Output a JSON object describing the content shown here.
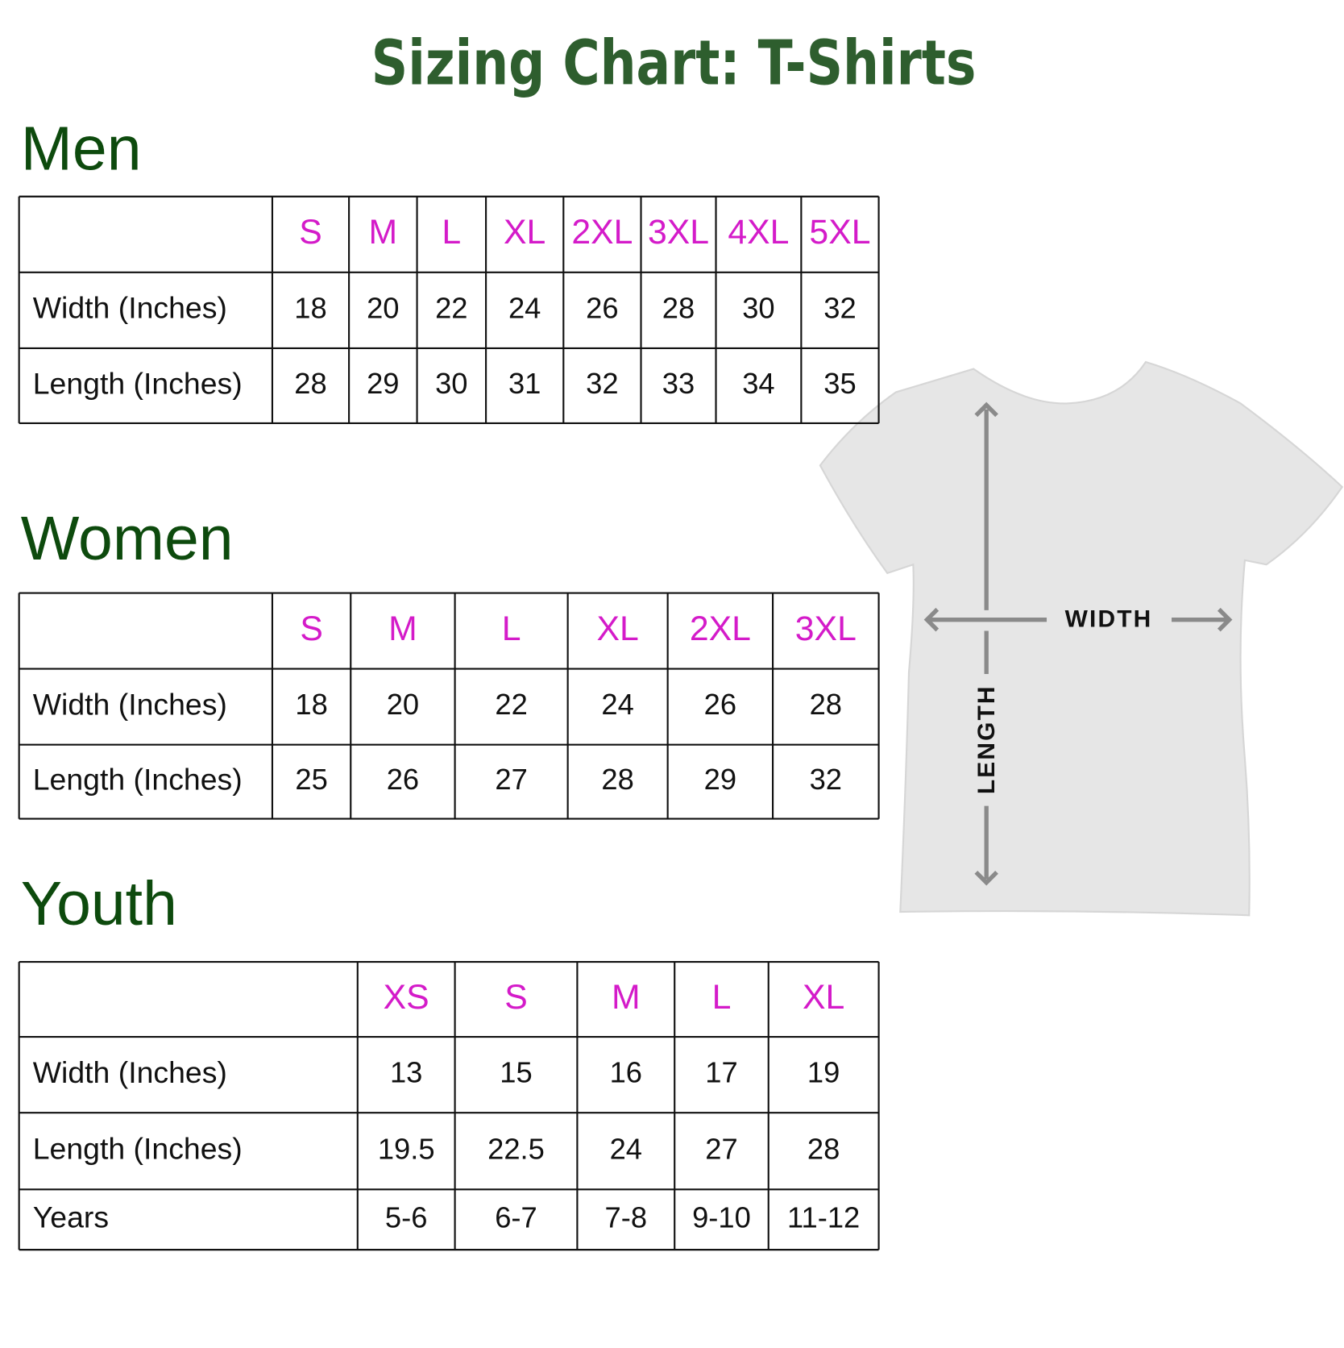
{
  "title": "Sizing Chart: T-Shirts",
  "sections": [
    {
      "heading": "Men",
      "sizes": [
        "S",
        "M",
        "L",
        "XL",
        "2XL",
        "3XL",
        "4XL",
        "5XL"
      ],
      "rows": [
        {
          "label": "Width (Inches)",
          "values": [
            18,
            20,
            22,
            24,
            26,
            28,
            30,
            32
          ]
        },
        {
          "label": "Length (Inches)",
          "values": [
            28,
            29,
            30,
            31,
            32,
            33,
            34,
            35
          ]
        }
      ]
    },
    {
      "heading": "Women",
      "sizes": [
        "S",
        "M",
        "L",
        "XL",
        "2XL",
        "3XL"
      ],
      "rows": [
        {
          "label": "Width (Inches)",
          "values": [
            18,
            20,
            22,
            24,
            26,
            28
          ]
        },
        {
          "label": "Length (Inches)",
          "values": [
            25,
            26,
            27,
            28,
            29,
            32
          ]
        }
      ]
    },
    {
      "heading": "Youth",
      "sizes": [
        "XS",
        "S",
        "M",
        "L",
        "XL"
      ],
      "rows": [
        {
          "label": "Width (Inches)",
          "values": [
            13,
            15,
            16,
            17,
            19
          ]
        },
        {
          "label": "Length (Inches)",
          "values": [
            19.5,
            22.5,
            24,
            27,
            28
          ]
        },
        {
          "label": "Years",
          "values": [
            "5-6",
            "6-7",
            "7-8",
            "9-10",
            "11-12"
          ]
        }
      ]
    }
  ],
  "diagram": {
    "width_label": "WIDTH",
    "length_label": "LENGTH"
  }
}
